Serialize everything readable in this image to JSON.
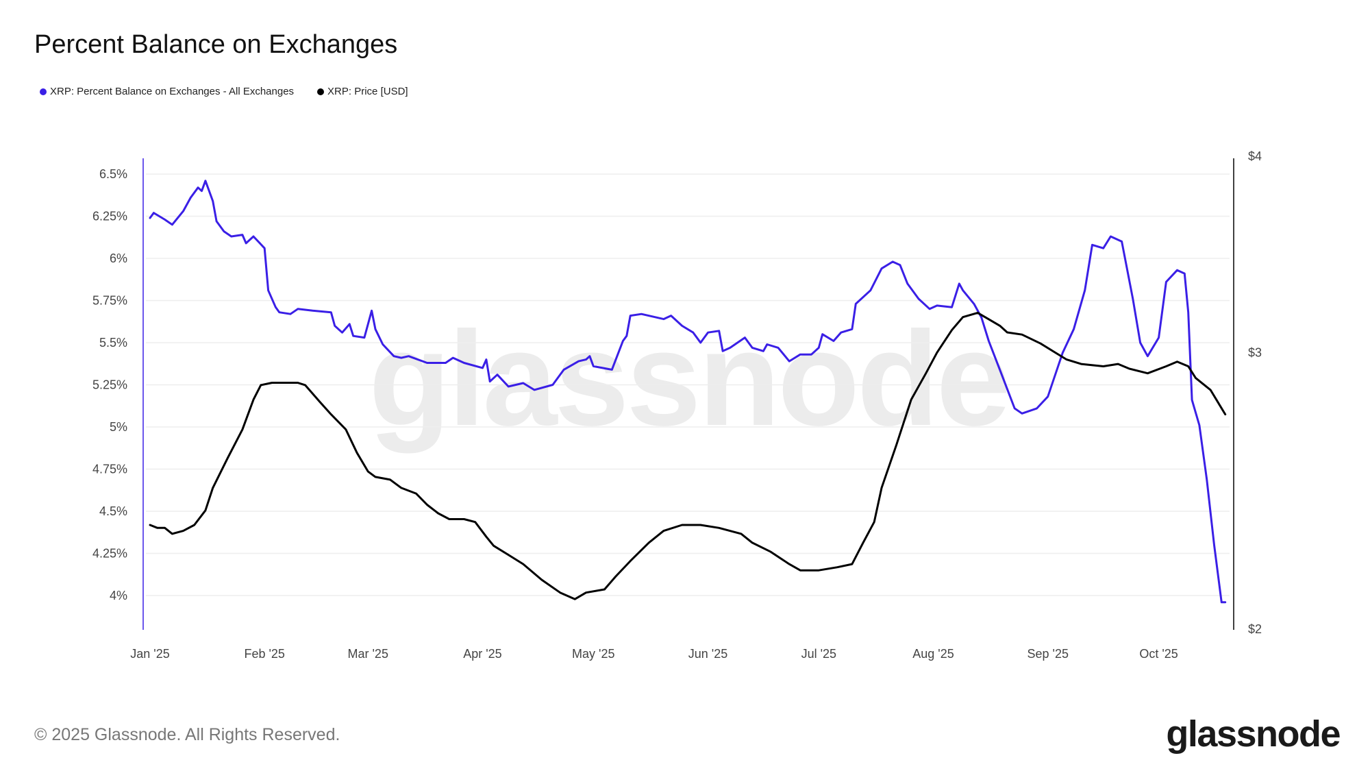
{
  "title": "Percent Balance on Exchanges",
  "legend": [
    {
      "label": "XRP: Percent Balance on Exchanges - All Exchanges",
      "color": "#3a1fe6"
    },
    {
      "label": "XRP: Price [USD]",
      "color": "#000000"
    }
  ],
  "footer": "© 2025 Glassnode. All Rights Reserved.",
  "brand": {
    "logo_text": "glassnode",
    "watermark_text": "glassnode"
  },
  "chart_data": {
    "type": "line",
    "title": "Percent Balance on Exchanges",
    "grid": true,
    "legend_position": "top-left",
    "x_axis": {
      "type": "date",
      "range": [
        "2025-01-01",
        "2025-10-19"
      ],
      "ticks": [
        {
          "date": "2025-01-01",
          "label": "Jan '25"
        },
        {
          "date": "2025-02-01",
          "label": "Feb '25"
        },
        {
          "date": "2025-03-01",
          "label": "Mar '25"
        },
        {
          "date": "2025-04-01",
          "label": "Apr '25"
        },
        {
          "date": "2025-05-01",
          "label": "May '25"
        },
        {
          "date": "2025-06-01",
          "label": "Jun '25"
        },
        {
          "date": "2025-07-01",
          "label": "Jul '25"
        },
        {
          "date": "2025-08-01",
          "label": "Aug '25"
        },
        {
          "date": "2025-09-01",
          "label": "Sep '25"
        },
        {
          "date": "2025-10-01",
          "label": "Oct '25"
        }
      ]
    },
    "left_axis": {
      "unit": "%",
      "scale": "linear",
      "range": [
        3.8,
        6.59
      ],
      "axis_color": "#3a1fe6",
      "ticks": [
        {
          "value": 6.5,
          "label": "6.5%"
        },
        {
          "value": 6.25,
          "label": "6.25%"
        },
        {
          "value": 6,
          "label": "6%"
        },
        {
          "value": 5.75,
          "label": "5.75%"
        },
        {
          "value": 5.5,
          "label": "5.5%"
        },
        {
          "value": 5.25,
          "label": "5.25%"
        },
        {
          "value": 5,
          "label": "5%"
        },
        {
          "value": 4.75,
          "label": "4.75%"
        },
        {
          "value": 4.5,
          "label": "4.5%"
        },
        {
          "value": 4.25,
          "label": "4.25%"
        },
        {
          "value": 4,
          "label": "4%"
        }
      ]
    },
    "right_axis": {
      "unit": "USD",
      "scale": "log",
      "range": [
        2,
        4
      ],
      "axis_color": "#000000",
      "ticks": [
        {
          "value": 4,
          "label": "$4"
        },
        {
          "value": 3,
          "label": "$3"
        },
        {
          "value": 2,
          "label": "$2"
        }
      ]
    },
    "series": [
      {
        "name": "XRP: Percent Balance on Exchanges - All Exchanges",
        "axis": "left",
        "color": "#3a1fe6",
        "points": [
          [
            "2025-01-01",
            6.24
          ],
          [
            "2025-01-02",
            6.27
          ],
          [
            "2025-01-05",
            6.23
          ],
          [
            "2025-01-07",
            6.2
          ],
          [
            "2025-01-10",
            6.28
          ],
          [
            "2025-01-12",
            6.36
          ],
          [
            "2025-01-14",
            6.42
          ],
          [
            "2025-01-15",
            6.4
          ],
          [
            "2025-01-16",
            6.46
          ],
          [
            "2025-01-18",
            6.34
          ],
          [
            "2025-01-19",
            6.22
          ],
          [
            "2025-01-21",
            6.16
          ],
          [
            "2025-01-23",
            6.13
          ],
          [
            "2025-01-26",
            6.14
          ],
          [
            "2025-01-27",
            6.09
          ],
          [
            "2025-01-29",
            6.13
          ],
          [
            "2025-02-01",
            6.06
          ],
          [
            "2025-02-02",
            5.81
          ],
          [
            "2025-02-04",
            5.71
          ],
          [
            "2025-02-05",
            5.68
          ],
          [
            "2025-02-08",
            5.67
          ],
          [
            "2025-02-10",
            5.7
          ],
          [
            "2025-02-14",
            5.69
          ],
          [
            "2025-02-19",
            5.68
          ],
          [
            "2025-02-20",
            5.6
          ],
          [
            "2025-02-22",
            5.56
          ],
          [
            "2025-02-24",
            5.61
          ],
          [
            "2025-02-25",
            5.54
          ],
          [
            "2025-02-28",
            5.53
          ],
          [
            "2025-03-02",
            5.69
          ],
          [
            "2025-03-03",
            5.58
          ],
          [
            "2025-03-05",
            5.49
          ],
          [
            "2025-03-08",
            5.42
          ],
          [
            "2025-03-10",
            5.41
          ],
          [
            "2025-03-12",
            5.42
          ],
          [
            "2025-03-17",
            5.38
          ],
          [
            "2025-03-22",
            5.38
          ],
          [
            "2025-03-24",
            5.41
          ],
          [
            "2025-03-27",
            5.38
          ],
          [
            "2025-04-01",
            5.35
          ],
          [
            "2025-04-02",
            5.4
          ],
          [
            "2025-04-03",
            5.27
          ],
          [
            "2025-04-05",
            5.31
          ],
          [
            "2025-04-08",
            5.24
          ],
          [
            "2025-04-12",
            5.26
          ],
          [
            "2025-04-15",
            5.22
          ],
          [
            "2025-04-20",
            5.25
          ],
          [
            "2025-04-23",
            5.34
          ],
          [
            "2025-04-27",
            5.39
          ],
          [
            "2025-04-29",
            5.4
          ],
          [
            "2025-04-30",
            5.42
          ],
          [
            "2025-05-01",
            5.36
          ],
          [
            "2025-05-06",
            5.34
          ],
          [
            "2025-05-09",
            5.51
          ],
          [
            "2025-05-10",
            5.54
          ],
          [
            "2025-05-11",
            5.66
          ],
          [
            "2025-05-14",
            5.67
          ],
          [
            "2025-05-20",
            5.64
          ],
          [
            "2025-05-22",
            5.66
          ],
          [
            "2025-05-25",
            5.6
          ],
          [
            "2025-05-28",
            5.56
          ],
          [
            "2025-05-30",
            5.5
          ],
          [
            "2025-06-01",
            5.56
          ],
          [
            "2025-06-04",
            5.57
          ],
          [
            "2025-06-05",
            5.45
          ],
          [
            "2025-06-07",
            5.47
          ],
          [
            "2025-06-11",
            5.53
          ],
          [
            "2025-06-13",
            5.47
          ],
          [
            "2025-06-16",
            5.45
          ],
          [
            "2025-06-17",
            5.49
          ],
          [
            "2025-06-20",
            5.47
          ],
          [
            "2025-06-23",
            5.39
          ],
          [
            "2025-06-26",
            5.43
          ],
          [
            "2025-06-29",
            5.43
          ],
          [
            "2025-07-01",
            5.47
          ],
          [
            "2025-07-02",
            5.55
          ],
          [
            "2025-07-05",
            5.51
          ],
          [
            "2025-07-07",
            5.56
          ],
          [
            "2025-07-10",
            5.58
          ],
          [
            "2025-07-11",
            5.73
          ],
          [
            "2025-07-15",
            5.81
          ],
          [
            "2025-07-18",
            5.94
          ],
          [
            "2025-07-21",
            5.98
          ],
          [
            "2025-07-23",
            5.96
          ],
          [
            "2025-07-25",
            5.85
          ],
          [
            "2025-07-28",
            5.76
          ],
          [
            "2025-07-31",
            5.7
          ],
          [
            "2025-08-02",
            5.72
          ],
          [
            "2025-08-06",
            5.71
          ],
          [
            "2025-08-08",
            5.85
          ],
          [
            "2025-08-09",
            5.81
          ],
          [
            "2025-08-12",
            5.73
          ],
          [
            "2025-08-14",
            5.65
          ],
          [
            "2025-08-16",
            5.51
          ],
          [
            "2025-08-19",
            5.34
          ],
          [
            "2025-08-23",
            5.11
          ],
          [
            "2025-08-25",
            5.08
          ],
          [
            "2025-08-29",
            5.11
          ],
          [
            "2025-09-01",
            5.18
          ],
          [
            "2025-09-05",
            5.44
          ],
          [
            "2025-09-08",
            5.58
          ],
          [
            "2025-09-11",
            5.81
          ],
          [
            "2025-09-13",
            6.08
          ],
          [
            "2025-09-16",
            6.06
          ],
          [
            "2025-09-18",
            6.13
          ],
          [
            "2025-09-21",
            6.1
          ],
          [
            "2025-09-24",
            5.76
          ],
          [
            "2025-09-26",
            5.5
          ],
          [
            "2025-09-28",
            5.42
          ],
          [
            "2025-10-01",
            5.53
          ],
          [
            "2025-10-03",
            5.86
          ],
          [
            "2025-10-06",
            5.93
          ],
          [
            "2025-10-08",
            5.91
          ],
          [
            "2025-10-09",
            5.68
          ],
          [
            "2025-10-10",
            5.16
          ],
          [
            "2025-10-12",
            5.01
          ],
          [
            "2025-10-14",
            4.69
          ],
          [
            "2025-10-16",
            4.3
          ],
          [
            "2025-10-18",
            3.96
          ],
          [
            "2025-10-19",
            3.96
          ]
        ]
      },
      {
        "name": "XRP: Price [USD]",
        "axis": "right",
        "color": "#000000",
        "points": [
          [
            "2025-01-01",
            2.33
          ],
          [
            "2025-01-03",
            2.32
          ],
          [
            "2025-01-05",
            2.32
          ],
          [
            "2025-01-07",
            2.3
          ],
          [
            "2025-01-10",
            2.31
          ],
          [
            "2025-01-13",
            2.33
          ],
          [
            "2025-01-16",
            2.38
          ],
          [
            "2025-01-18",
            2.46
          ],
          [
            "2025-01-22",
            2.57
          ],
          [
            "2025-01-26",
            2.68
          ],
          [
            "2025-01-29",
            2.8
          ],
          [
            "2025-01-31",
            2.86
          ],
          [
            "2025-02-03",
            2.87
          ],
          [
            "2025-02-06",
            2.87
          ],
          [
            "2025-02-10",
            2.87
          ],
          [
            "2025-02-12",
            2.86
          ],
          [
            "2025-02-16",
            2.79
          ],
          [
            "2025-02-19",
            2.74
          ],
          [
            "2025-02-23",
            2.68
          ],
          [
            "2025-02-26",
            2.59
          ],
          [
            "2025-03-01",
            2.52
          ],
          [
            "2025-03-03",
            2.5
          ],
          [
            "2025-03-07",
            2.49
          ],
          [
            "2025-03-10",
            2.46
          ],
          [
            "2025-03-14",
            2.44
          ],
          [
            "2025-03-17",
            2.4
          ],
          [
            "2025-03-20",
            2.37
          ],
          [
            "2025-03-23",
            2.35
          ],
          [
            "2025-03-27",
            2.35
          ],
          [
            "2025-03-30",
            2.34
          ],
          [
            "2025-04-02",
            2.29
          ],
          [
            "2025-04-04",
            2.26
          ],
          [
            "2025-04-08",
            2.23
          ],
          [
            "2025-04-12",
            2.2
          ],
          [
            "2025-04-17",
            2.15
          ],
          [
            "2025-04-22",
            2.11
          ],
          [
            "2025-04-26",
            2.09
          ],
          [
            "2025-04-29",
            2.11
          ],
          [
            "2025-05-04",
            2.12
          ],
          [
            "2025-05-07",
            2.16
          ],
          [
            "2025-05-11",
            2.21
          ],
          [
            "2025-05-16",
            2.27
          ],
          [
            "2025-05-20",
            2.31
          ],
          [
            "2025-05-25",
            2.33
          ],
          [
            "2025-05-30",
            2.33
          ],
          [
            "2025-06-04",
            2.32
          ],
          [
            "2025-06-10",
            2.3
          ],
          [
            "2025-06-13",
            2.27
          ],
          [
            "2025-06-18",
            2.24
          ],
          [
            "2025-06-23",
            2.2
          ],
          [
            "2025-06-26",
            2.18
          ],
          [
            "2025-07-01",
            2.18
          ],
          [
            "2025-07-06",
            2.19
          ],
          [
            "2025-07-10",
            2.2
          ],
          [
            "2025-07-13",
            2.27
          ],
          [
            "2025-07-16",
            2.34
          ],
          [
            "2025-07-18",
            2.46
          ],
          [
            "2025-07-22",
            2.62
          ],
          [
            "2025-07-26",
            2.8
          ],
          [
            "2025-07-30",
            2.91
          ],
          [
            "2025-08-02",
            3.0
          ],
          [
            "2025-08-06",
            3.1
          ],
          [
            "2025-08-09",
            3.16
          ],
          [
            "2025-08-13",
            3.18
          ],
          [
            "2025-08-16",
            3.15
          ],
          [
            "2025-08-19",
            3.12
          ],
          [
            "2025-08-21",
            3.09
          ],
          [
            "2025-08-25",
            3.08
          ],
          [
            "2025-08-30",
            3.04
          ],
          [
            "2025-09-02",
            3.01
          ],
          [
            "2025-09-06",
            2.97
          ],
          [
            "2025-09-10",
            2.95
          ],
          [
            "2025-09-16",
            2.94
          ],
          [
            "2025-09-20",
            2.95
          ],
          [
            "2025-09-23",
            2.93
          ],
          [
            "2025-09-28",
            2.91
          ],
          [
            "2025-10-03",
            2.94
          ],
          [
            "2025-10-06",
            2.96
          ],
          [
            "2025-10-09",
            2.94
          ],
          [
            "2025-10-11",
            2.89
          ],
          [
            "2025-10-15",
            2.84
          ],
          [
            "2025-10-19",
            2.74
          ]
        ]
      }
    ]
  }
}
